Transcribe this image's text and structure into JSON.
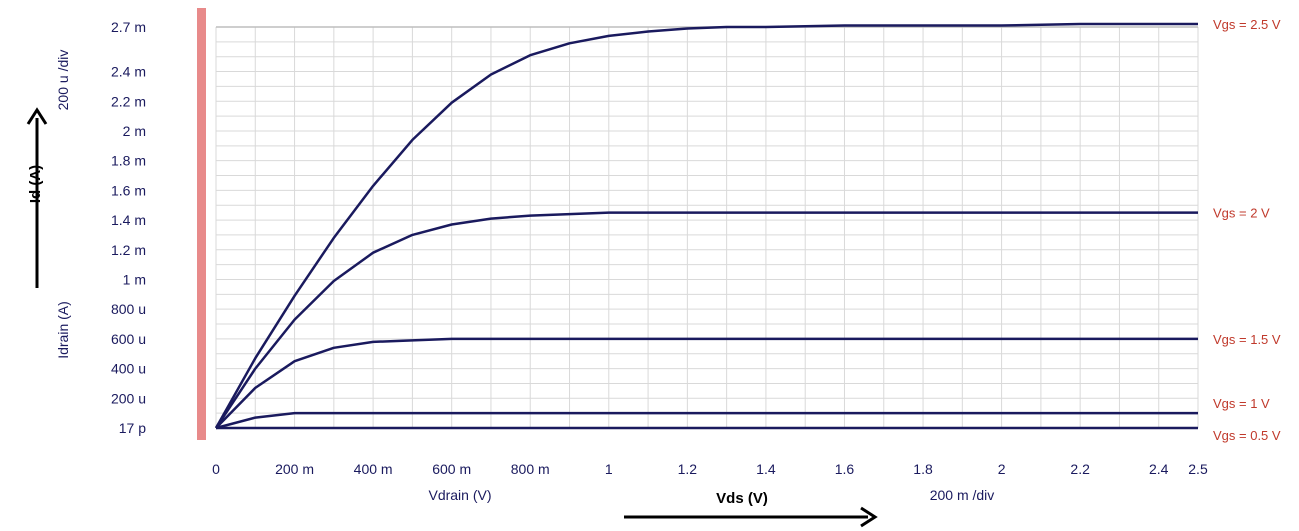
{
  "chart_data": {
    "type": "line",
    "title": "",
    "xlabel": "Vdrain (V)",
    "ylabel": "Idrain (A)",
    "x_annotation": "Vds (V)",
    "y_annotation": "Id (A)",
    "x_scale_note": "200 m /div",
    "y_scale_note": "200 u /div",
    "xlim": [
      0,
      2.5
    ],
    "ylim": [
      0,
      0.0027
    ],
    "grid": true,
    "legend": "right, inline series labels",
    "x_ticks": [
      {
        "value": 0,
        "label": "0"
      },
      {
        "value": 0.2,
        "label": "200 m"
      },
      {
        "value": 0.4,
        "label": "400 m"
      },
      {
        "value": 0.6,
        "label": "600 m"
      },
      {
        "value": 0.8,
        "label": "800 m"
      },
      {
        "value": 1.0,
        "label": "1"
      },
      {
        "value": 1.2,
        "label": "1.2"
      },
      {
        "value": 1.4,
        "label": "1.4"
      },
      {
        "value": 1.6,
        "label": "1.6"
      },
      {
        "value": 1.8,
        "label": "1.8"
      },
      {
        "value": 2.0,
        "label": "2"
      },
      {
        "value": 2.2,
        "label": "2.2"
      },
      {
        "value": 2.4,
        "label": "2.4"
      },
      {
        "value": 2.5,
        "label": "2.5"
      }
    ],
    "y_ticks": [
      {
        "value": 0,
        "label": "17 p"
      },
      {
        "value": 0.0002,
        "label": "200 u"
      },
      {
        "value": 0.0004,
        "label": "400 u"
      },
      {
        "value": 0.0006,
        "label": "600 u"
      },
      {
        "value": 0.0008,
        "label": "800 u"
      },
      {
        "value": 0.001,
        "label": "1 m"
      },
      {
        "value": 0.0012,
        "label": "1.2 m"
      },
      {
        "value": 0.0014,
        "label": "1.4 m"
      },
      {
        "value": 0.0016,
        "label": "1.6 m"
      },
      {
        "value": 0.0018,
        "label": "1.8 m"
      },
      {
        "value": 0.002,
        "label": "2 m"
      },
      {
        "value": 0.0022,
        "label": "2.2 m"
      },
      {
        "value": 0.0024,
        "label": "2.4 m"
      },
      {
        "value": 0.0027,
        "label": "2.7 m"
      }
    ],
    "x": [
      0,
      0.1,
      0.2,
      0.3,
      0.4,
      0.5,
      0.6,
      0.7,
      0.8,
      0.9,
      1.0,
      1.1,
      1.2,
      1.3,
      1.4,
      1.6,
      1.8,
      2.0,
      2.2,
      2.5
    ],
    "series": [
      {
        "name": "Vgs = 2.5 V",
        "color": "#1a1a5e",
        "values": [
          0,
          0.00047,
          0.00089,
          0.00128,
          0.00163,
          0.00194,
          0.00219,
          0.00238,
          0.00251,
          0.00259,
          0.00264,
          0.00267,
          0.00269,
          0.0027,
          0.0027,
          0.00271,
          0.00271,
          0.00271,
          0.00272,
          0.00272
        ]
      },
      {
        "name": "Vgs = 2 V",
        "color": "#1a1a5e",
        "values": [
          0,
          0.0004,
          0.00073,
          0.00099,
          0.00118,
          0.0013,
          0.00137,
          0.00141,
          0.00143,
          0.00144,
          0.00145,
          0.00145,
          0.00145,
          0.00145,
          0.00145,
          0.00145,
          0.00145,
          0.00145,
          0.00145,
          0.00145
        ]
      },
      {
        "name": "Vgs = 1.5 V",
        "color": "#1a1a5e",
        "values": [
          0,
          0.00027,
          0.00045,
          0.00054,
          0.00058,
          0.00059,
          0.0006,
          0.0006,
          0.0006,
          0.0006,
          0.0006,
          0.0006,
          0.0006,
          0.0006,
          0.0006,
          0.0006,
          0.0006,
          0.0006,
          0.0006,
          0.0006
        ]
      },
      {
        "name": "Vgs = 1 V",
        "color": "#1a1a5e",
        "values": [
          0,
          7e-05,
          0.0001,
          0.0001,
          0.0001,
          0.0001,
          0.0001,
          0.0001,
          0.0001,
          0.0001,
          0.0001,
          0.0001,
          0.0001,
          0.0001,
          0.0001,
          0.0001,
          0.0001,
          0.0001,
          0.0001,
          0.0001
        ]
      },
      {
        "name": "Vgs = 0.5 V",
        "color": "#1a1a5e",
        "values": [
          0,
          0,
          0,
          0,
          0,
          0,
          0,
          0,
          0,
          0,
          0,
          0,
          0,
          0,
          0,
          0,
          0,
          0,
          0,
          0
        ]
      }
    ]
  }
}
